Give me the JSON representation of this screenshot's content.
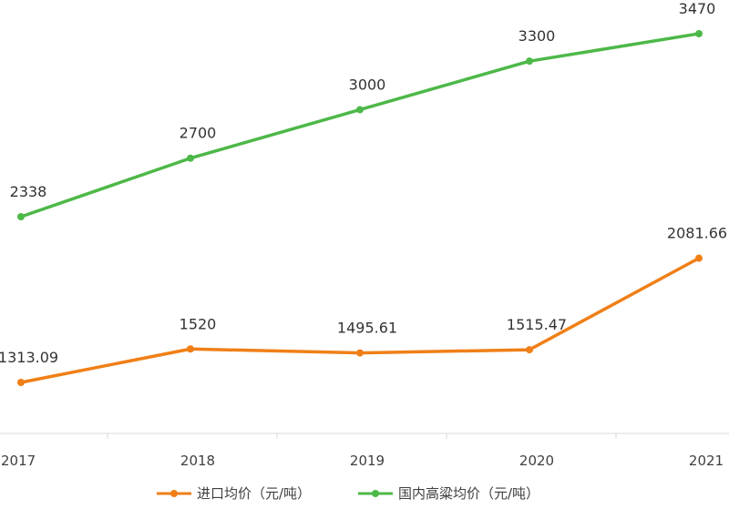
{
  "chart_data": {
    "type": "line",
    "title": "",
    "xlabel": "",
    "ylabel": "",
    "categories": [
      "2017",
      "2018",
      "2019",
      "2020",
      "2021"
    ],
    "series": [
      {
        "name": "进口均价（元/吨）",
        "color": "#F07F17",
        "values": [
          1313.09,
          1520,
          1495.61,
          1515.47,
          2081.66
        ],
        "labels": [
          "1313.09",
          "1520",
          "1495.61",
          "1515.47",
          "2081.66"
        ]
      },
      {
        "name": "国内高粱均价（元/吨）",
        "color": "#4DB848",
        "values": [
          2338,
          2700,
          3000,
          3300,
          3470
        ],
        "labels": [
          "2338",
          "2700",
          "3000",
          "3300",
          "3470"
        ]
      }
    ],
    "ylim": [
      1000,
      3600
    ],
    "grid": false,
    "legend": "bottom"
  }
}
